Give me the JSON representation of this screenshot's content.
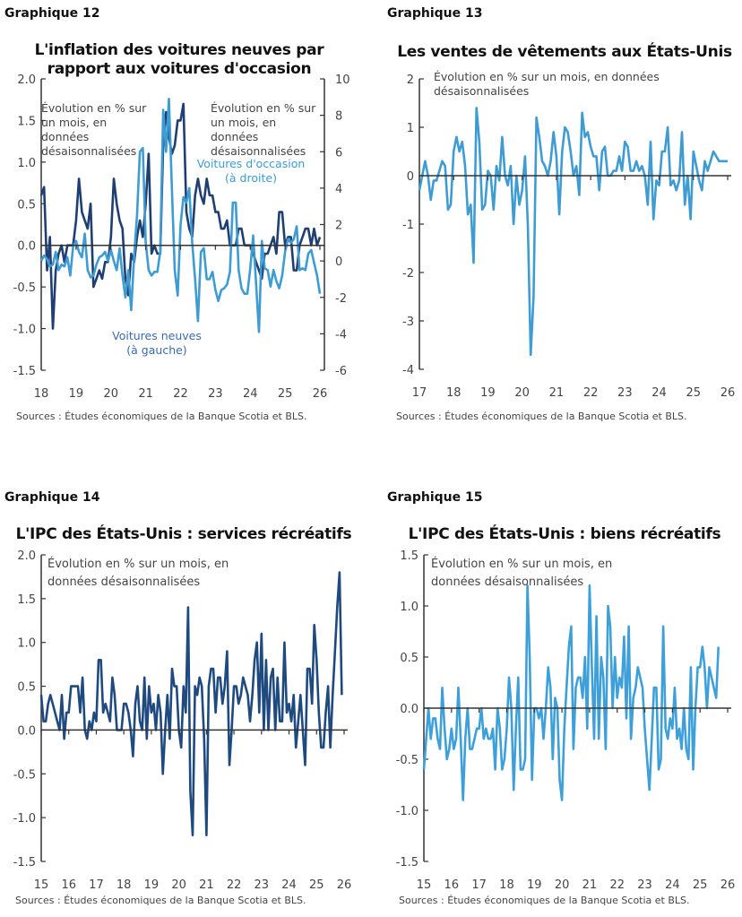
{
  "colors": {
    "dark_blue": "#1f3f73",
    "light_blue": "#3e9cd3",
    "axis": "#333333"
  },
  "chart_data": [
    {
      "id": "g12",
      "number": "Graphique 12",
      "type": "line",
      "title": "L'inflation des voitures neuves par rapport aux voitures d'occasion",
      "note_left": "Évolution en % sur un mois, en données désaisonnalisées",
      "note_right": "Évolution en % sur un mois, en données désaisonnalisées",
      "source": "Sources : Études économiques de la Banque Scotia et BLS.",
      "xticks": [
        "18",
        "19",
        "20",
        "21",
        "22",
        "23",
        "24",
        "25",
        "26"
      ],
      "ylim": [
        -1.5,
        2.0
      ],
      "yticks": [
        "-1.5",
        "-1.0",
        "-0.5",
        "0.0",
        "0.5",
        "1.0",
        "1.5",
        "2.0"
      ],
      "y2lim": [
        -6,
        10
      ],
      "y2ticks": [
        "-6",
        "-4",
        "-2",
        "0",
        "2",
        "4",
        "6",
        "8",
        "10"
      ],
      "series": [
        {
          "name": "Voitures neuves (à gauche)",
          "label_line1": "Voitures neuves",
          "label_line2": "(à gauche)",
          "axis": "left",
          "color": "#1f3f73",
          "start": "2018-01",
          "frequency": "monthly",
          "values": [
            0.6,
            0.7,
            -0.3,
            0.1,
            -1.0,
            -0.3,
            -0.1,
            0,
            -0.2,
            0,
            0,
            0,
            0.3,
            0.8,
            0.4,
            0.3,
            0.2,
            0.5,
            -0.5,
            -0.4,
            -0.3,
            -0.4,
            -0.2,
            -0.2,
            0.1,
            0.8,
            0.5,
            0.3,
            0.2,
            -0.4,
            -0.6,
            -0.1,
            -0.2,
            0.1,
            0.3,
            0.1,
            0.5,
            1.1,
            -0.1,
            0,
            -0.1,
            -0.1,
            1.2,
            1.6,
            1.3,
            1.1,
            1.2,
            1.5,
            1.5,
            1.7,
            0.4,
            0.2,
            0.1,
            0.6,
            0.8,
            0.6,
            0.5,
            0.8,
            0.6,
            0.6,
            0.4,
            0.4,
            0.2,
            0.2,
            0.3,
            0,
            0,
            0,
            0.2,
            0.2,
            0,
            0,
            0,
            -0.1,
            -0.2,
            -0.3,
            -0.4,
            -0.1,
            -0.1,
            0,
            0.1,
            -0.1,
            0.4,
            0.4,
            0,
            0.1,
            0.1,
            -0.3,
            -0.3,
            0,
            0.1,
            0.2,
            0.2,
            0,
            0.2,
            0,
            0.1
          ]
        },
        {
          "name": "Voitures d'occasion (à droite)",
          "label_line1": "Voitures d'occasion",
          "label_line2": "(à droite)",
          "axis": "right",
          "color": "#3e9cd3",
          "start": "2018-01",
          "frequency": "monthly",
          "values": [
            0,
            0.3,
            0.1,
            -0.3,
            -0.2,
            0.5,
            -0.5,
            -0.2,
            -0.3,
            0.2,
            -0.8,
            0.8,
            1.1,
            0.5,
            0.2,
            1.5,
            -0.5,
            -0.9,
            -0.8,
            -0.2,
            0.2,
            0.3,
            0.5,
            0,
            0.6,
            0,
            -0.5,
            0.7,
            -0.8,
            -2.0,
            -0.5,
            -2.7,
            0.3,
            2.5,
            6,
            6.2,
            1.0,
            -0.5,
            -0.8,
            -0.6,
            -0.6,
            0.5,
            8.3,
            6,
            8.9,
            4,
            -0.5,
            -1.9,
            2.0,
            3.5,
            3.2,
            4.0,
            1.0,
            -1.0,
            -3.3,
            0.5,
            0.7,
            -1.0,
            -1.0,
            -0.6,
            -1.6,
            -2.2,
            -1.6,
            -1.5,
            -1.3,
            -0.6,
            3.2,
            3.2,
            -0.5,
            -1.5,
            -1.8,
            -1.8,
            -0.4,
            1.4,
            -1.2,
            -3.9,
            1.1,
            -0.4,
            -0.5,
            -1.4,
            -0.5,
            -1.1,
            -1.5,
            -0.8,
            0.5,
            1.2,
            1.0,
            1.2,
            1.9,
            -0.5,
            -0.4,
            -0.5,
            0.4,
            0.6,
            -0.1,
            -0.8,
            -1.8
          ]
        }
      ]
    },
    {
      "id": "g13",
      "number": "Graphique 13",
      "type": "line",
      "title": "Les ventes de vêtements aux États-Unis",
      "note_left": "Évolution en % sur un mois, en données désaisonnalisées",
      "source": "Sources : Études économiques de la Banque Scotia et BLS.",
      "xticks": [
        "17",
        "18",
        "19",
        "20",
        "21",
        "22",
        "23",
        "24",
        "25",
        "26"
      ],
      "ylim": [
        -4,
        2
      ],
      "yticks": [
        "-4",
        "-3",
        "-2",
        "-1",
        "0",
        "1",
        "2"
      ],
      "series": [
        {
          "axis": "left",
          "color": "#3e9cd3",
          "start": "2017-01",
          "frequency": "monthly",
          "values": [
            -0.3,
            0,
            0.3,
            0,
            -0.5,
            -0.1,
            -0.1,
            0.1,
            0.3,
            0.2,
            -0.7,
            -0.6,
            0.5,
            0.8,
            0.5,
            0.7,
            0.2,
            -0.8,
            -0.6,
            -1.8,
            1.4,
            0.7,
            -0.7,
            -0.6,
            0.1,
            0,
            -0.7,
            0.2,
            -0.1,
            0.8,
            0,
            -0.2,
            0.2,
            -1.0,
            0,
            -0.6,
            -0.3,
            0.4,
            -1.0,
            -3.7,
            -2.5,
            1.2,
            0.8,
            0.3,
            0.2,
            0,
            0.3,
            0.9,
            0.4,
            -0.8,
            0.5,
            1.0,
            0.9,
            0.5,
            0,
            0.2,
            -0.4,
            1.3,
            0.8,
            0.9,
            0.6,
            0.4,
            0.4,
            -0.3,
            0.5,
            0.6,
            0,
            0,
            0.1,
            0.1,
            0.4,
            0.1,
            0.7,
            0.6,
            0.1,
            0.1,
            0.3,
            0.1,
            0.2,
            0,
            -0.6,
            0.7,
            -0.9,
            -0.1,
            -0.2,
            0.5,
            0.5,
            1.0,
            -0.2,
            -0.1,
            -0.3,
            -0.1,
            0.9,
            -0.6,
            0,
            -0.9,
            0.5,
            0.2,
            -0.1,
            -0.3,
            0.3,
            0.1,
            0.3,
            0.5,
            0.4,
            0.3,
            0.3,
            0.3,
            0.3
          ]
        }
      ]
    },
    {
      "id": "g14",
      "number": "Graphique 14",
      "type": "line",
      "title": "L'IPC des États-Unis : services récréatifs",
      "note_left": "Évolution en % sur un mois, en données désaisonnalisées",
      "source": "Sources : Études économiques de la Banque Scotia et BLS.",
      "xticks": [
        "15",
        "16",
        "17",
        "18",
        "19",
        "20",
        "21",
        "22",
        "23",
        "24",
        "25",
        "26"
      ],
      "ylim": [
        -1.5,
        2.0
      ],
      "yticks": [
        "-1.5",
        "-1.0",
        "-0.5",
        "0.0",
        "0.5",
        "1.0",
        "1.5",
        "2.0"
      ],
      "series": [
        {
          "axis": "left",
          "color": "#1f4a80",
          "start": "2015-01",
          "frequency": "monthly",
          "values": [
            0.4,
            0.1,
            0.1,
            0.3,
            0.4,
            0.3,
            0.2,
            0.1,
            0,
            0.4,
            -0.1,
            0.2,
            0.2,
            0.5,
            0.5,
            0.5,
            0.5,
            0.2,
            0.6,
            0,
            -0.1,
            0.1,
            0,
            0.2,
            0.1,
            0.8,
            0.8,
            0.2,
            0.3,
            0.2,
            0.1,
            0.6,
            0.4,
            0,
            0,
            0,
            0.3,
            0.3,
            0.2,
            0,
            -0.3,
            0.3,
            0.5,
            0.1,
            0,
            0.6,
            -0.1,
            0.5,
            0.2,
            0.3,
            0,
            0.4,
            0.2,
            -0.5,
            0,
            0.4,
            -0.1,
            0.7,
            0.5,
            0.5,
            0,
            -0.2,
            0.5,
            0.2,
            1.4,
            -0.7,
            -1.2,
            0.5,
            0.4,
            0.6,
            0.5,
            -0.1,
            -1.2,
            0.5,
            0.7,
            0.7,
            0.2,
            0.6,
            0.6,
            0.3,
            0.5,
            0.9,
            -0.4,
            0,
            0.5,
            0.5,
            0.3,
            0.4,
            0.6,
            0.5,
            0.4,
            0.1,
            0.4,
            0.8,
            1.0,
            0.2,
            1.1,
            0,
            0.8,
            0,
            0.6,
            0.7,
            0,
            0.6,
            0.1,
            0.1,
            1.0,
            0.2,
            0.3,
            0.1,
            0.4,
            -0.2,
            0.1,
            0.4,
            0,
            -0.4,
            0.7,
            0.7,
            0.3,
            1.2,
            0.8,
            0.2,
            -0.2,
            -0.2,
            0.2,
            0.5,
            -0.2,
            0.4,
            0.9,
            1.4,
            1.8,
            0.4
          ]
        }
      ]
    },
    {
      "id": "g15",
      "number": "Graphique 15",
      "type": "line",
      "title": "L'IPC des États-Unis : biens récréatifs",
      "note_left": "Évolution en % sur un mois, en données désaisonnalisées",
      "source": "Sources : Études économiques de la Banque Scotia et BLS.",
      "xticks": [
        "15",
        "16",
        "17",
        "18",
        "19",
        "20",
        "21",
        "22",
        "23",
        "24",
        "25",
        "26"
      ],
      "ylim": [
        -1.5,
        1.5
      ],
      "yticks": [
        "-1.5",
        "-1.0",
        "-0.5",
        "0.0",
        "0.5",
        "1.0",
        "1.5"
      ],
      "series": [
        {
          "axis": "left",
          "color": "#3ea0d8",
          "start": "2015-01",
          "frequency": "monthly",
          "values": [
            -0.6,
            -0.3,
            0,
            -0.3,
            -0.1,
            -0.1,
            -0.3,
            -0.4,
            0.2,
            -0.2,
            -0.5,
            -0.4,
            -0.2,
            -0.4,
            -0.3,
            0.2,
            -0.3,
            -0.9,
            -0.3,
            0,
            -0.4,
            -0.4,
            -0.3,
            -0.2,
            -0.2,
            0,
            -0.3,
            -0.2,
            -0.3,
            -0.3,
            -0.2,
            -0.6,
            0,
            -0.2,
            -0.6,
            -0.5,
            -0.2,
            0.3,
            0,
            -0.8,
            -0.2,
            0.3,
            -0.6,
            -0.6,
            -0.5,
            1.2,
            0.5,
            -0.7,
            0,
            0,
            -0.1,
            0,
            -0.3,
            0,
            0.4,
            0.2,
            -0.5,
            0.1,
            0,
            -0.7,
            -0.9,
            -0.2,
            0.2,
            0.6,
            0.8,
            -0.4,
            0.2,
            0.3,
            0.3,
            0.1,
            0.5,
            -0.2,
            1.2,
            0.4,
            -0.3,
            0.9,
            -0.3,
            0.5,
            0.3,
            -0.4,
            1.0,
            0.8,
            0,
            0.5,
            0.1,
            0.3,
            0.2,
            0.7,
            -0.1,
            0.8,
            -0.3,
            0.1,
            0.2,
            0.4,
            0.3,
            0.2,
            -0.2,
            -0.5,
            -0.8,
            -0.3,
            0.2,
            0.2,
            -0.6,
            -0.5,
            0.8,
            -0.2,
            -0.3,
            -0.1,
            -0.2,
            0.2,
            -0.3,
            -0.2,
            -0.4,
            0,
            -0.4,
            -0.5,
            0.4,
            -0.6,
            0,
            0.4,
            0.4,
            0.6,
            0.4,
            0,
            0.4,
            0.3,
            0.2,
            0.1,
            0.6
          ]
        }
      ]
    }
  ]
}
